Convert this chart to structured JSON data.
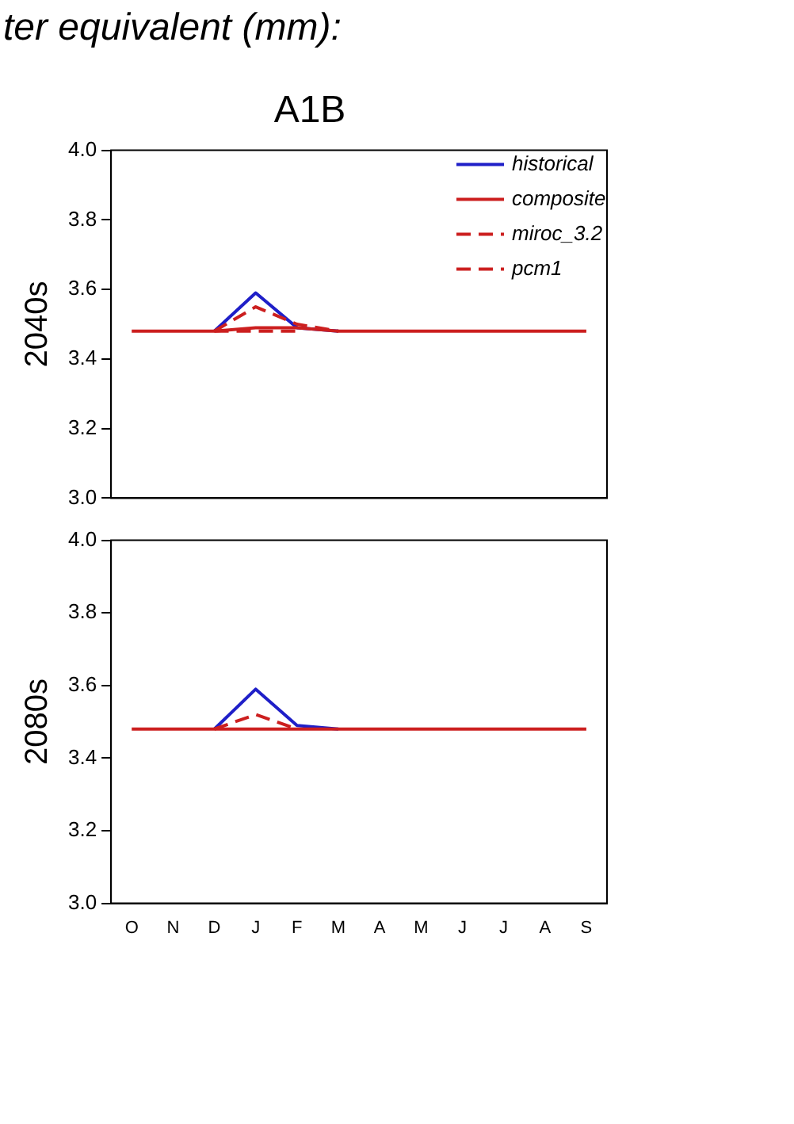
{
  "chart_data": [
    {
      "type": "line",
      "title": "A1B",
      "annotations": [
        "ter equivalent (mm):"
      ],
      "ylabel": "2040s",
      "categories": [
        null,
        null,
        null,
        null,
        null,
        null,
        null,
        null,
        null,
        null,
        null,
        null
      ],
      "ylim": [
        3.0,
        4.0
      ],
      "yticks": [
        {
          "value": 3.0,
          "label": "3.0"
        },
        {
          "value": 3.2,
          "label": "3.2"
        },
        {
          "value": 3.4,
          "label": "3.4"
        },
        {
          "value": 3.6,
          "label": "3.6"
        },
        {
          "value": 3.8,
          "label": "3.8"
        },
        {
          "value": 4.0,
          "label": "4.0"
        }
      ],
      "grid": false,
      "legend": "top right",
      "tick_labels": "y",
      "marker": "none",
      "series": [
        {
          "name": "historical",
          "color": "#1f1fc8",
          "line_style": "solid",
          "values": [
            null,
            null,
            3.48,
            3.59,
            3.49,
            3.48,
            null,
            null,
            null,
            null,
            null,
            null
          ]
        },
        {
          "name": "composite",
          "color": "#cc1f1f",
          "line_style": "solid",
          "values": [
            3.48,
            3.48,
            3.48,
            3.49,
            3.49,
            3.48,
            3.48,
            3.48,
            3.48,
            3.48,
            3.48,
            3.48
          ]
        },
        {
          "name": "miroc_3.2",
          "color": "#cc1f1f",
          "line_style": "dashed",
          "values": [
            null,
            null,
            3.48,
            3.55,
            3.5,
            3.48,
            null,
            null,
            null,
            null,
            null,
            null
          ]
        },
        {
          "name": "pcm1",
          "color": "#cc1f1f",
          "line_style": "dashed",
          "values": [
            null,
            null,
            3.48,
            3.48,
            3.48,
            null,
            null,
            null,
            null,
            null,
            null,
            null
          ]
        }
      ]
    },
    {
      "type": "line",
      "ylabel": "2080s",
      "categories": [
        "O",
        "N",
        "D",
        "J",
        "F",
        "M",
        "A",
        "M",
        "J",
        "J",
        "A",
        "S"
      ],
      "ylim": [
        3.0,
        4.0
      ],
      "yticks": [
        {
          "value": 3.0,
          "label": "3.0"
        },
        {
          "value": 3.2,
          "label": "3.2"
        },
        {
          "value": 3.4,
          "label": "3.4"
        },
        {
          "value": 3.6,
          "label": "3.6"
        },
        {
          "value": 3.8,
          "label": "3.8"
        },
        {
          "value": 4.0,
          "label": "4.0"
        }
      ],
      "grid": false,
      "marker": "none",
      "series": [
        {
          "color": "#1f1fc8",
          "line_style": "solid",
          "values": [
            null,
            null,
            3.48,
            3.59,
            3.49,
            3.48,
            null,
            null,
            null,
            null,
            null,
            null
          ]
        },
        {
          "color": "#cc1f1f",
          "line_style": "solid",
          "values": [
            3.48,
            3.48,
            3.48,
            3.48,
            3.48,
            3.48,
            3.48,
            3.48,
            3.48,
            3.48,
            3.48,
            3.48
          ]
        },
        {
          "color": "#cc1f1f",
          "line_style": "dashed",
          "values": [
            null,
            null,
            3.48,
            3.52,
            3.48,
            null,
            null,
            null,
            null,
            null,
            null,
            null
          ]
        }
      ]
    }
  ]
}
